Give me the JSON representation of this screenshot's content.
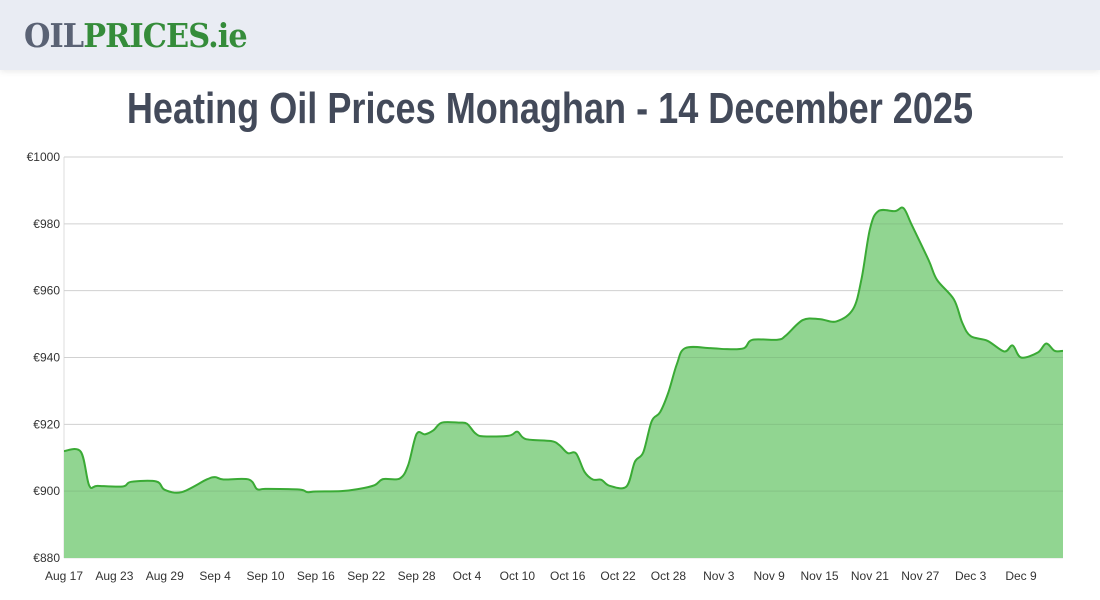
{
  "header": {
    "logo_part1": "OIL",
    "logo_part2": "PRICES.ie"
  },
  "title": "Heating Oil Prices Monaghan - 14 December 2025",
  "chart_data": {
    "type": "area",
    "title": "Heating Oil Prices Monaghan - 14 December 2025",
    "xlabel": "",
    "ylabel": "",
    "ylim": [
      880,
      1000
    ],
    "y_ticks": [
      "€880",
      "€900",
      "€920",
      "€940",
      "€960",
      "€980",
      "€1000"
    ],
    "x_ticks": [
      "Aug 17",
      "Aug 23",
      "Aug 29",
      "Sep 4",
      "Sep 10",
      "Sep 16",
      "Sep 22",
      "Sep 28",
      "Oct 4",
      "Oct 10",
      "Oct 16",
      "Oct 22",
      "Oct 28",
      "Nov 3",
      "Nov 9",
      "Nov 15",
      "Nov 21",
      "Nov 27",
      "Dec 3",
      "Dec 9"
    ],
    "grid": true,
    "colors": {
      "line": "#3aaa35",
      "fill": "#91d591"
    },
    "points": [
      [
        "2025-08-17",
        912.0
      ],
      [
        "2025-08-19",
        911.8
      ],
      [
        "2025-08-20",
        901.7
      ],
      [
        "2025-08-21",
        901.6
      ],
      [
        "2025-08-24",
        901.4
      ],
      [
        "2025-08-25",
        902.8
      ],
      [
        "2025-08-28",
        902.9
      ],
      [
        "2025-08-29",
        900.4
      ],
      [
        "2025-08-31",
        899.7
      ],
      [
        "2025-09-03",
        903.5
      ],
      [
        "2025-09-04",
        904.2
      ],
      [
        "2025-09-05",
        903.5
      ],
      [
        "2025-09-08",
        903.5
      ],
      [
        "2025-09-09",
        900.6
      ],
      [
        "2025-09-10",
        900.7
      ],
      [
        "2025-09-14",
        900.5
      ],
      [
        "2025-09-15",
        899.7
      ],
      [
        "2025-09-16",
        899.9
      ],
      [
        "2025-09-19",
        900.0
      ],
      [
        "2025-09-21",
        900.6
      ],
      [
        "2025-09-23",
        901.8
      ],
      [
        "2025-09-24",
        903.6
      ],
      [
        "2025-09-26",
        903.8
      ],
      [
        "2025-09-27",
        907.8
      ],
      [
        "2025-09-28",
        917.1
      ],
      [
        "2025-09-29",
        917.0
      ],
      [
        "2025-09-30",
        918.2
      ],
      [
        "2025-10-01",
        920.5
      ],
      [
        "2025-10-03",
        920.5
      ],
      [
        "2025-10-04",
        920.2
      ],
      [
        "2025-10-05",
        917.3
      ],
      [
        "2025-10-06",
        916.4
      ],
      [
        "2025-10-09",
        916.6
      ],
      [
        "2025-10-10",
        917.8
      ],
      [
        "2025-10-11",
        915.6
      ],
      [
        "2025-10-14",
        915.0
      ],
      [
        "2025-10-15",
        913.8
      ],
      [
        "2025-10-16",
        911.4
      ],
      [
        "2025-10-17",
        911.3
      ],
      [
        "2025-10-18",
        905.8
      ],
      [
        "2025-10-19",
        903.5
      ],
      [
        "2025-10-20",
        903.4
      ],
      [
        "2025-10-21",
        901.6
      ],
      [
        "2025-10-23",
        901.4
      ],
      [
        "2025-10-24",
        908.8
      ],
      [
        "2025-10-25",
        911.6
      ],
      [
        "2025-10-26",
        920.9
      ],
      [
        "2025-10-27",
        923.6
      ],
      [
        "2025-10-28",
        929.6
      ],
      [
        "2025-10-29",
        938.0
      ],
      [
        "2025-10-30",
        942.8
      ],
      [
        "2025-11-02",
        942.8
      ],
      [
        "2025-11-04",
        942.5
      ],
      [
        "2025-11-06",
        942.8
      ],
      [
        "2025-11-07",
        945.3
      ],
      [
        "2025-11-10",
        945.3
      ],
      [
        "2025-11-11",
        946.6
      ],
      [
        "2025-11-13",
        951.2
      ],
      [
        "2025-11-15",
        951.5
      ],
      [
        "2025-11-17",
        950.8
      ],
      [
        "2025-11-19",
        954.5
      ],
      [
        "2025-11-20",
        963.5
      ],
      [
        "2025-11-21",
        978.4
      ],
      [
        "2025-11-22",
        983.8
      ],
      [
        "2025-11-24",
        983.8
      ],
      [
        "2025-11-25",
        984.7
      ],
      [
        "2025-11-26",
        979.6
      ],
      [
        "2025-11-28",
        969.1
      ],
      [
        "2025-11-29",
        963.2
      ],
      [
        "2025-12-01",
        957.4
      ],
      [
        "2025-12-02",
        950.4
      ],
      [
        "2025-12-03",
        946.4
      ],
      [
        "2025-12-05",
        945.0
      ],
      [
        "2025-12-07",
        941.8
      ],
      [
        "2025-12-08",
        943.6
      ],
      [
        "2025-12-09",
        940.0
      ],
      [
        "2025-12-11",
        941.5
      ],
      [
        "2025-12-12",
        944.2
      ],
      [
        "2025-12-13",
        942.0
      ],
      [
        "2025-12-14",
        942.0
      ]
    ]
  }
}
